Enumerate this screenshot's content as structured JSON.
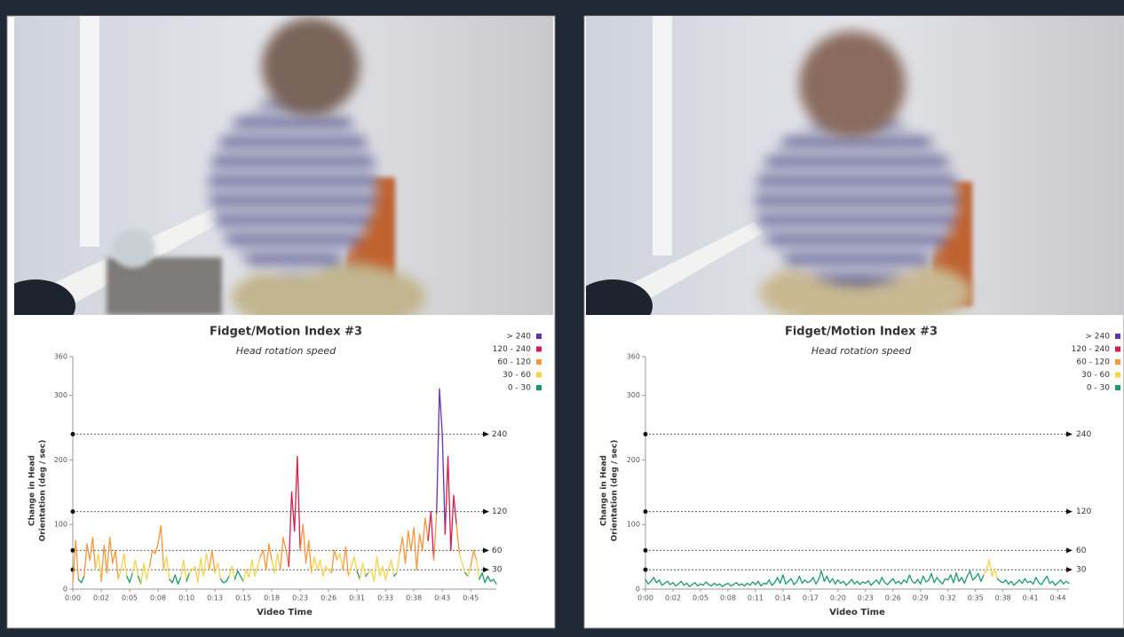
{
  "chart_data": [
    {
      "type": "line",
      "title": "Fidget/Motion Index #3",
      "subtitle": "Head rotation speed",
      "ylabel": [
        "Change in Head",
        "Orientation (deg / sec)"
      ],
      "xlabel": "Video Time",
      "ylim": [
        0,
        360
      ],
      "yticks": [
        0,
        100,
        200,
        300,
        360
      ],
      "xlim": [
        0,
        149
      ],
      "xticks": [
        {
          "value": 0,
          "label": "0:00"
        },
        {
          "value": 10,
          "label": "0:02"
        },
        {
          "value": 20,
          "label": "0:05"
        },
        {
          "value": 30,
          "label": "0:08"
        },
        {
          "value": 40,
          "label": "0:10"
        },
        {
          "value": 50,
          "label": "0:13"
        },
        {
          "value": 60,
          "label": "0:15"
        },
        {
          "value": 70,
          "label": "0:18"
        },
        {
          "value": 80,
          "label": "0:23"
        },
        {
          "value": 90,
          "label": "0:26"
        },
        {
          "value": 100,
          "label": "0:31"
        },
        {
          "value": 110,
          "label": "0:33"
        },
        {
          "value": 120,
          "label": "0:38"
        },
        {
          "value": 130,
          "label": "0:43"
        },
        {
          "value": 140,
          "label": "0:45"
        }
      ],
      "reference_lines": [
        240,
        120,
        60,
        30
      ],
      "legend": [
        {
          "label": "> 240",
          "color": "#6a2fb0"
        },
        {
          "label": "120 - 240",
          "color": "#d81b4a"
        },
        {
          "label": "60 - 120",
          "color": "#f7963a"
        },
        {
          "label": "30 - 60",
          "color": "#f5d34a"
        },
        {
          "label": "0 - 30",
          "color": "#1d9a6c"
        }
      ],
      "values": [
        10,
        75,
        15,
        10,
        20,
        70,
        45,
        80,
        30,
        55,
        12,
        68,
        25,
        80,
        40,
        60,
        15,
        30,
        55,
        20,
        10,
        25,
        45,
        20,
        8,
        40,
        15,
        35,
        60,
        55,
        70,
        98,
        30,
        50,
        15,
        10,
        22,
        8,
        18,
        45,
        12,
        25,
        30,
        35,
        10,
        48,
        20,
        55,
        30,
        60,
        25,
        40,
        15,
        10,
        12,
        20,
        35,
        15,
        28,
        20,
        12,
        30,
        18,
        45,
        20,
        35,
        50,
        60,
        30,
        70,
        45,
        25,
        55,
        30,
        80,
        60,
        35,
        150,
        90,
        205,
        60,
        100,
        40,
        75,
        25,
        50,
        30,
        45,
        20,
        35,
        30,
        25,
        60,
        45,
        55,
        30,
        65,
        20,
        35,
        50,
        28,
        15,
        40,
        20,
        25,
        30,
        12,
        50,
        20,
        35,
        15,
        30,
        45,
        20,
        25,
        55,
        80,
        40,
        90,
        60,
        95,
        30,
        85,
        60,
        110,
        75,
        120,
        45,
        118,
        310,
        240,
        85,
        205,
        60,
        145,
        100,
        55,
        40,
        25,
        20,
        35,
        60,
        45,
        15,
        25,
        10,
        20,
        12,
        15,
        8
      ]
    },
    {
      "type": "line",
      "title": "Fidget/Motion Index #3",
      "subtitle": "Head rotation speed",
      "ylabel": [
        "Change in Head",
        "Orientation (deg / sec)"
      ],
      "xlabel": "Video Time",
      "ylim": [
        0,
        360
      ],
      "yticks": [
        0,
        100,
        200,
        300,
        360
      ],
      "xlim": [
        0,
        154
      ],
      "xticks": [
        {
          "value": 0,
          "label": "0:00"
        },
        {
          "value": 10,
          "label": "0:02"
        },
        {
          "value": 20,
          "label": "0:05"
        },
        {
          "value": 30,
          "label": "0:08"
        },
        {
          "value": 40,
          "label": "0:11"
        },
        {
          "value": 50,
          "label": "0:14"
        },
        {
          "value": 60,
          "label": "0:17"
        },
        {
          "value": 70,
          "label": "0:20"
        },
        {
          "value": 80,
          "label": "0:23"
        },
        {
          "value": 90,
          "label": "0:26"
        },
        {
          "value": 100,
          "label": "0:29"
        },
        {
          "value": 110,
          "label": "0:32"
        },
        {
          "value": 120,
          "label": "0:35"
        },
        {
          "value": 130,
          "label": "0:38"
        },
        {
          "value": 140,
          "label": "0:41"
        },
        {
          "value": 150,
          "label": "0:44"
        }
      ],
      "reference_lines": [
        240,
        120,
        60,
        30
      ],
      "legend": [
        {
          "label": "> 240",
          "color": "#6a2fb0"
        },
        {
          "label": "120 - 240",
          "color": "#d81b4a"
        },
        {
          "label": "60 - 120",
          "color": "#f7963a"
        },
        {
          "label": "30 - 60",
          "color": "#f5d34a"
        },
        {
          "label": "0 - 30",
          "color": "#1d9a6c"
        }
      ],
      "values": [
        15,
        8,
        12,
        18,
        10,
        14,
        6,
        9,
        12,
        7,
        10,
        5,
        8,
        12,
        6,
        9,
        4,
        7,
        10,
        5,
        8,
        6,
        11,
        7,
        5,
        9,
        6,
        8,
        4,
        7,
        9,
        5,
        7,
        10,
        6,
        8,
        5,
        9,
        6,
        11,
        7,
        12,
        5,
        9,
        8,
        14,
        6,
        10,
        18,
        9,
        22,
        8,
        12,
        16,
        7,
        11,
        20,
        9,
        14,
        10,
        12,
        18,
        8,
        15,
        28,
        12,
        20,
        10,
        16,
        8,
        14,
        9,
        12,
        6,
        10,
        15,
        8,
        12,
        7,
        11,
        9,
        13,
        6,
        10,
        14,
        8,
        18,
        10,
        7,
        12,
        16,
        9,
        12,
        8,
        14,
        10,
        22,
        12,
        9,
        15,
        8,
        20,
        11,
        14,
        24,
        10,
        18,
        12,
        8,
        16,
        14,
        22,
        10,
        25,
        12,
        18,
        9,
        20,
        28,
        14,
        18,
        24,
        12,
        22,
        30,
        45,
        20,
        32,
        16,
        12,
        10,
        14,
        8,
        12,
        6,
        10,
        14,
        9,
        16,
        10,
        12,
        8,
        18,
        10,
        7,
        14,
        20,
        9,
        12,
        6,
        10,
        14,
        8,
        12,
        9
      ]
    }
  ]
}
